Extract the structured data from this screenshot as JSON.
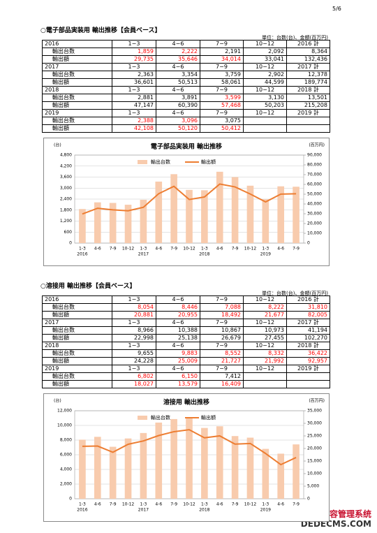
{
  "page_number": "5/6",
  "sections": [
    {
      "title": "○電子部品実装用 輸出推移【会員ベース】",
      "unit": "単位：台数(台)、金額(百万円)",
      "table": [
        {
          "header": [
            "2016",
            "1−3",
            "4−6",
            "7−9",
            "10−12",
            "2016 計"
          ],
          "rows": [
            {
              "cells": [
                "輸出台数",
                "1,859",
                "2,222",
                "2,191",
                "2,092",
                "8,364"
              ],
              "colors": [
                "#000000",
                "#ff0000",
                "#ff0000",
                "#000000",
                "#000000",
                "#000000"
              ]
            },
            {
              "cells": [
                "輸出額",
                "29,735",
                "35,646",
                "34,014",
                "33,041",
                "132,436"
              ],
              "colors": [
                "#000000",
                "#ff0000",
                "#ff0000",
                "#ff0000",
                "#000000",
                "#000000"
              ]
            }
          ]
        },
        {
          "header": [
            "2017",
            "1−3",
            "4−6",
            "7−9",
            "10−12",
            "2017 計"
          ],
          "rows": [
            {
              "cells": [
                "輸出台数",
                "2,363",
                "3,354",
                "3,759",
                "2,902",
                "12,378"
              ],
              "colors": [
                "#000000",
                "#000000",
                "#000000",
                "#000000",
                "#000000",
                "#000000"
              ]
            },
            {
              "cells": [
                "輸出額",
                "36,601",
                "50,513",
                "58,061",
                "44,599",
                "189,774"
              ],
              "colors": [
                "#000000",
                "#000000",
                "#000000",
                "#000000",
                "#000000",
                "#000000"
              ]
            }
          ]
        },
        {
          "header": [
            "2018",
            "1−3",
            "4−6",
            "7−9",
            "10−12",
            "2018 計"
          ],
          "rows": [
            {
              "cells": [
                "輸出台数",
                "2,881",
                "3,891",
                "3,599",
                "3,130",
                "13,501"
              ],
              "colors": [
                "#000000",
                "#000000",
                "#000000",
                "#ff0000",
                "#000000",
                "#000000"
              ]
            },
            {
              "cells": [
                "輸出額",
                "47,147",
                "60,390",
                "57,468",
                "50,203",
                "215,208"
              ],
              "colors": [
                "#000000",
                "#000000",
                "#000000",
                "#ff0000",
                "#000000",
                "#000000"
              ]
            }
          ]
        },
        {
          "header": [
            "2019",
            "1−3",
            "4−6",
            "7−9",
            "10−12",
            "2019 計"
          ],
          "rows": [
            {
              "cells": [
                "輸出台数",
                "2,388",
                "3,096",
                "3,075"
              ],
              "colors": [
                "#000000",
                "#ff0000",
                "#ff0000",
                "#000000"
              ]
            },
            {
              "cells": [
                "輸出額",
                "42,108",
                "50,120",
                "50,412"
              ],
              "colors": [
                "#000000",
                "#ff0000",
                "#ff0000",
                "#ff0000"
              ]
            }
          ]
        }
      ],
      "chart_data": {
        "type": "combo",
        "title": "電子部品実装用 輸出推移",
        "y_label": "(台)",
        "y2_label": "(百万円)",
        "groups": [
          {
            "name": "2016",
            "categories": [
              "1-3",
              "4-6",
              "7-9",
              "10-12"
            ]
          },
          {
            "name": "2017",
            "categories": [
              "1-3",
              "4-6",
              "7-9",
              "10-12"
            ]
          },
          {
            "name": "2018",
            "categories": [
              "1-3",
              "4-6",
              "7-9",
              "10-12"
            ]
          },
          {
            "name": "2019",
            "categories": [
              "1-3",
              "4-6",
              "7-9"
            ]
          }
        ],
        "series": [
          {
            "name": "輸出台数",
            "type": "bar",
            "color": "#f8cbad",
            "values": [
              1859,
              2222,
              2191,
              2092,
              2363,
              3354,
              3759,
              2902,
              2881,
              3891,
              3599,
              3130,
              2388,
              3096,
              3075
            ]
          },
          {
            "name": "輸出額",
            "type": "line",
            "axis": "y2",
            "color": "#ed7d31",
            "values": [
              29735,
              35646,
              34014,
              33041,
              36601,
              50513,
              58061,
              44599,
              47147,
              60390,
              57468,
              50203,
              42108,
              50120,
              50412
            ]
          }
        ],
        "ylim": [
          0,
          4800
        ],
        "yticks": [
          0,
          600,
          {
            "value": 1200,
            "label": "1,200"
          },
          {
            "value": 1800,
            "label": "1,800"
          },
          {
            "value": 2400,
            "label": "2,400"
          },
          {
            "value": 3000,
            "label": "3,000"
          },
          {
            "value": 3600,
            "label": "3,600"
          },
          {
            "value": 4200,
            "label": "4,200"
          },
          {
            "value": 4800,
            "label": "4,800"
          }
        ],
        "y2lim": [
          0,
          90000
        ],
        "y2ticks": [
          0,
          {
            "value": 10000,
            "label": "10,000"
          },
          {
            "value": 20000,
            "label": "20,000"
          },
          {
            "value": 30000,
            "label": "30,000"
          },
          {
            "value": 40000,
            "label": "40,000"
          },
          {
            "value": 50000,
            "label": "50,000"
          },
          {
            "value": 60000,
            "label": "60,000"
          },
          {
            "value": 70000,
            "label": "70,000"
          },
          {
            "value": 80000,
            "label": "80,000"
          },
          {
            "value": 90000,
            "label": "90,000"
          }
        ],
        "grid": true,
        "legend": "top"
      }
    },
    {
      "title": "○溶接用 輸出推移【会員ベース】",
      "unit": "単位：台数(台)、金額(百万円)",
      "table": [
        {
          "header": [
            "2016",
            "1−3",
            "4−6",
            "7−9",
            "10−12",
            "2016 計"
          ],
          "rows": [
            {
              "cells": [
                "輸出台数",
                "8,054",
                "8,446",
                "7,088",
                "8,222",
                "31,810"
              ],
              "colors": [
                "#000000",
                "#ff0000",
                "#ff0000",
                "#ff0000",
                "#ff0000",
                "#ff0000"
              ]
            },
            {
              "cells": [
                "輸出額",
                "20,881",
                "20,955",
                "18,492",
                "21,677",
                "82,005"
              ],
              "colors": [
                "#000000",
                "#ff0000",
                "#ff0000",
                "#ff0000",
                "#ff0000",
                "#ff0000"
              ]
            }
          ]
        },
        {
          "header": [
            "2017",
            "1−3",
            "4−6",
            "7−9",
            "10−12",
            "2017 計"
          ],
          "rows": [
            {
              "cells": [
                "輸出台数",
                "8,966",
                "10,388",
                "10,867",
                "10,973",
                "41,194"
              ],
              "colors": [
                "#000000",
                "#000000",
                "#000000",
                "#000000",
                "#000000",
                "#000000"
              ]
            },
            {
              "cells": [
                "輸出額",
                "22,998",
                "25,138",
                "26,679",
                "27,455",
                "102,270"
              ],
              "colors": [
                "#000000",
                "#000000",
                "#000000",
                "#000000",
                "#000000",
                "#000000"
              ]
            }
          ]
        },
        {
          "header": [
            "2018",
            "1−3",
            "4−6",
            "7−9",
            "10−12",
            "2018 計"
          ],
          "rows": [
            {
              "cells": [
                "輸出台数",
                "9,655",
                "9,883",
                "8,552",
                "8,332",
                "36,422"
              ],
              "colors": [
                "#000000",
                "#000000",
                "#ff0000",
                "#ff0000",
                "#ff0000",
                "#ff0000"
              ]
            },
            {
              "cells": [
                "輸出額",
                "24,228",
                "25,009",
                "21,727",
                "21,992",
                "92,957"
              ],
              "colors": [
                "#000000",
                "#000000",
                "#ff0000",
                "#ff0000",
                "#ff0000",
                "#ff0000"
              ]
            }
          ]
        },
        {
          "header": [
            "2019",
            "1−3",
            "4−6",
            "7−9",
            "10−12",
            "2019 計"
          ],
          "rows": [
            {
              "cells": [
                "輸出台数",
                "6,802",
                "6,150",
                "7,412"
              ],
              "colors": [
                "#000000",
                "#ff0000",
                "#ff0000",
                "#000000"
              ]
            },
            {
              "cells": [
                "輸出額",
                "18,027",
                "13,579",
                "16,409"
              ],
              "colors": [
                "#000000",
                "#ff0000",
                "#ff0000",
                "#ff0000"
              ]
            }
          ]
        }
      ],
      "chart_data": {
        "type": "combo",
        "title": "溶接用 輸出推移",
        "y_label": "(台)",
        "y2_label": "(百万円)",
        "groups": [
          {
            "name": "2016",
            "categories": [
              "1-3",
              "4-6",
              "7-9",
              "10-12"
            ]
          },
          {
            "name": "2017",
            "categories": [
              "1-3",
              "4-6",
              "7-9",
              "10-12"
            ]
          },
          {
            "name": "2018",
            "categories": [
              "1-3",
              "4-6",
              "7-9",
              "10-12"
            ]
          },
          {
            "name": "2019",
            "categories": [
              "1-3",
              "4-6",
              "7-9"
            ]
          }
        ],
        "series": [
          {
            "name": "輸出台数",
            "type": "bar",
            "color": "#f8cbad",
            "values": [
              8054,
              8446,
              7088,
              8222,
              8966,
              10388,
              10867,
              10973,
              9655,
              9883,
              8552,
              8332,
              6802,
              6150,
              7412
            ]
          },
          {
            "name": "輸出額",
            "type": "line",
            "axis": "y2",
            "color": "#ed7d31",
            "values": [
              20881,
              20955,
              18492,
              21677,
              22998,
              25138,
              26679,
              27455,
              24228,
              25009,
              21727,
              21992,
              18027,
              13579,
              16409
            ]
          }
        ],
        "ylim": [
          0,
          12000
        ],
        "yticks": [
          0,
          {
            "value": 2000,
            "label": "2,000"
          },
          {
            "value": 4000,
            "label": "4,000"
          },
          {
            "value": 6000,
            "label": "6,000"
          },
          {
            "value": 8000,
            "label": "8,000"
          },
          {
            "value": 10000,
            "label": "10,000"
          },
          {
            "value": 12000,
            "label": "12,000"
          }
        ],
        "y2lim": [
          0,
          35000
        ],
        "y2ticks": [
          0,
          {
            "value": 5000,
            "label": "5,000"
          },
          {
            "value": 10000,
            "label": "10,000"
          },
          {
            "value": 15000,
            "label": "15,000"
          },
          {
            "value": 20000,
            "label": "20,000"
          },
          {
            "value": 25000,
            "label": "25,000"
          },
          {
            "value": 30000,
            "label": "30,000"
          },
          {
            "value": 35000,
            "label": "35,000"
          }
        ],
        "grid": true,
        "legend": "top"
      }
    }
  ],
  "watermark": [
    "织梦内容管理系统",
    "DEDECMS.COM"
  ]
}
